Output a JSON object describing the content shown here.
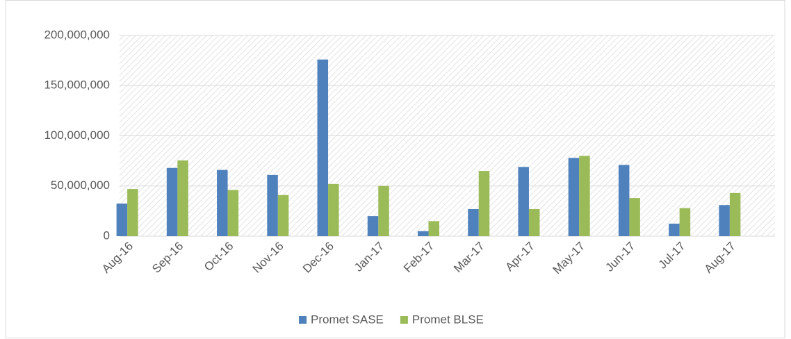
{
  "chart_data": {
    "type": "bar",
    "categories": [
      "Aug-16",
      "Sep-16",
      "Oct-16",
      "Nov-16",
      "Dec-16",
      "Jan-17",
      "Feb-17",
      "Mar-17",
      "Apr-17",
      "May-17",
      "Jun-17",
      "Jul-17",
      "Aug-17"
    ],
    "series": [
      {
        "name": "Promet SASE",
        "color": "#4f81bd",
        "values": [
          32500000,
          68000000,
          66000000,
          61000000,
          176000000,
          20000000,
          5000000,
          27000000,
          69000000,
          78000000,
          71000000,
          12500000,
          31000000
        ]
      },
      {
        "name": "Promet BLSE",
        "color": "#9bbb59",
        "values": [
          47000000,
          75500000,
          46000000,
          41000000,
          52000000,
          50000000,
          15000000,
          65000000,
          27000000,
          80000000,
          38000000,
          28000000,
          43000000
        ]
      }
    ],
    "ylim": [
      0,
      200000000
    ],
    "yticks": [
      0,
      {
        "value": 50000000,
        "label": "50,000,000"
      },
      {
        "value": 100000000,
        "label": "100,000,000"
      },
      {
        "value": 150000000,
        "label": "150,000,000"
      },
      {
        "value": 200000000,
        "label": "200,000,000"
      }
    ],
    "grid": true,
    "legend": "bottom"
  }
}
